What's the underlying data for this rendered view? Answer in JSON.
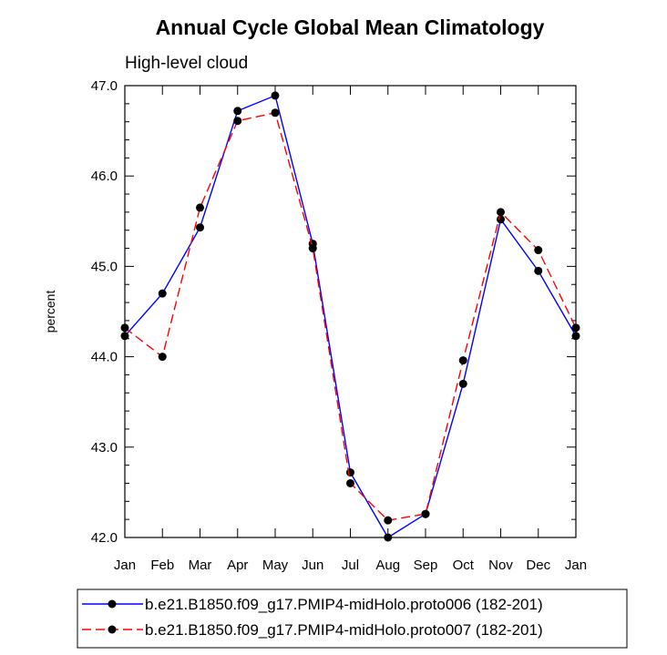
{
  "chart_data": {
    "type": "line",
    "title": "Annual Cycle Global Mean Climatology",
    "subtitle": "High-level cloud",
    "ylabel": "percent",
    "xlabel": "",
    "ylim": [
      42.0,
      47.0
    ],
    "yticks": [
      "42.0",
      "43.0",
      "44.0",
      "45.0",
      "46.0",
      "47.0"
    ],
    "yticks_values": [
      42.0,
      43.0,
      44.0,
      45.0,
      46.0,
      47.0
    ],
    "categories": [
      "Jan",
      "Feb",
      "Mar",
      "Apr",
      "May",
      "Jun",
      "Jul",
      "Aug",
      "Sep",
      "Oct",
      "Nov",
      "Dec",
      "Jan"
    ],
    "grid": false,
    "legend_position": "bottom",
    "series": [
      {
        "name": "b.e21.B1850.f09_g17.PMIP4-midHolo.proto006 (182-201)",
        "color": "#0000ff",
        "dash": "solid",
        "values": [
          44.23,
          44.7,
          45.43,
          46.72,
          46.89,
          45.25,
          42.72,
          42.0,
          42.26,
          43.7,
          45.52,
          44.95,
          44.23
        ]
      },
      {
        "name": "b.e21.B1850.f09_g17.PMIP4-midHolo.proto007 (182-201)",
        "color": "#ff0000",
        "dash": "dashed",
        "values": [
          44.32,
          44.0,
          45.65,
          46.61,
          46.7,
          45.2,
          42.6,
          42.19,
          42.26,
          43.96,
          45.6,
          45.18,
          44.32
        ]
      }
    ]
  }
}
